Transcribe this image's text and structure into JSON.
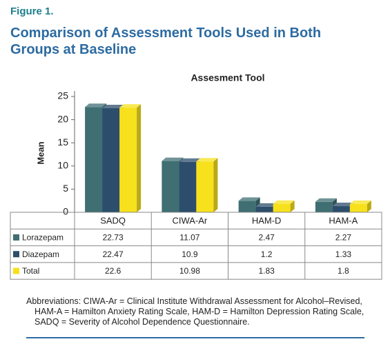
{
  "header": {
    "figure": "Figure 1.",
    "title": "Comparison of Assessment Tools Used in Both Groups at Baseline"
  },
  "chart_data": {
    "type": "bar",
    "title": "Assesment Tool",
    "y_label": "Mean",
    "categories": [
      "SADQ",
      "CIWA-Ar",
      "HAM-D",
      "HAM-A"
    ],
    "series": [
      {
        "name": "Lorazepam",
        "color": "#3f6f73",
        "values": [
          22.73,
          11.07,
          2.47,
          2.27
        ]
      },
      {
        "name": "Diazepam",
        "color": "#2c4e6c",
        "values": [
          22.47,
          10.9,
          1.2,
          1.33
        ]
      },
      {
        "name": "Total",
        "color": "#f7e11c",
        "values": [
          22.6,
          10.98,
          1.83,
          1.8
        ]
      }
    ],
    "ylim": [
      0,
      25
    ],
    "yticks": [
      0,
      5,
      10,
      15,
      20,
      25
    ],
    "grid": false
  },
  "footnote": "Abbreviations: CIWA-Ar = Clinical Institute Withdrawal Assessment for Alcohol–Revised, HAM-A = Hamilton Anxiety Rating Scale, HAM-D = Hamilton Depression Rating Scale, SADQ = Severity of Alcohol Dependence Questionnaire."
}
